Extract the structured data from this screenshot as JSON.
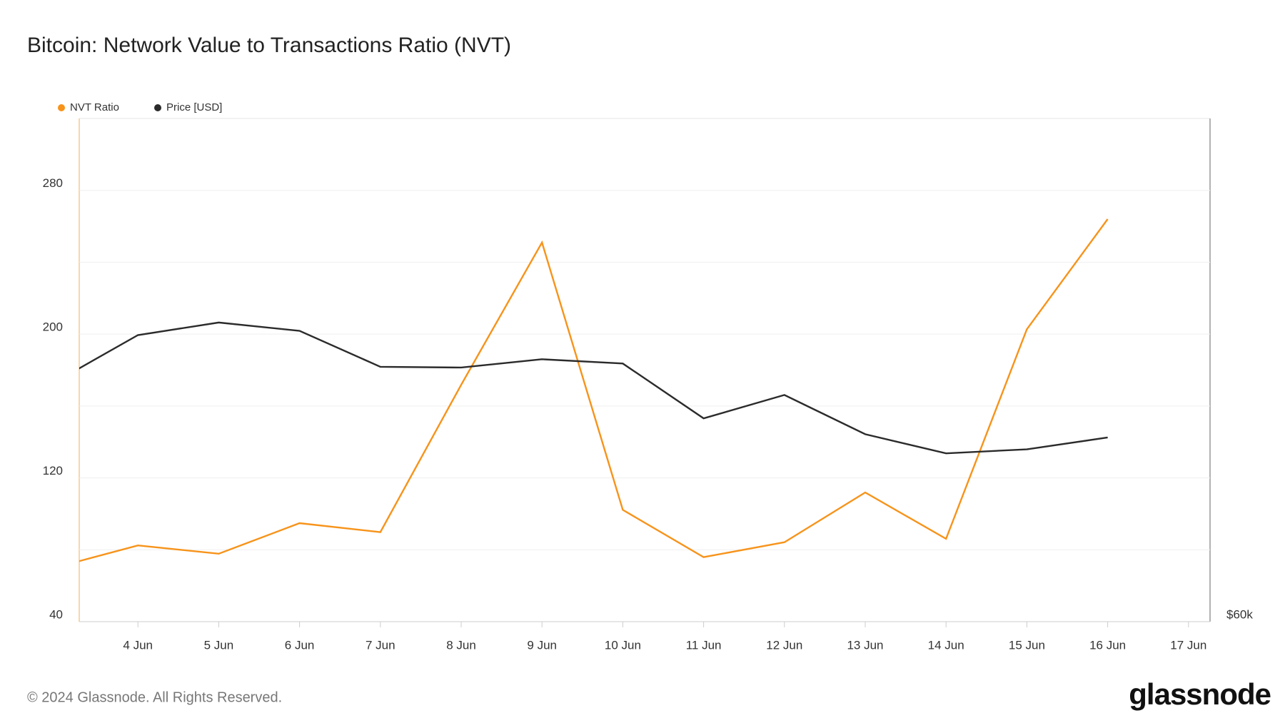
{
  "chart_data": {
    "type": "line",
    "title": "Bitcoin: Network Value to Transactions Ratio (NVT)",
    "categories": [
      null,
      "4 Jun",
      "5 Jun",
      "6 Jun",
      "7 Jun",
      "8 Jun",
      "9 Jun",
      "10 Jun",
      "11 Jun",
      "12 Jun",
      "13 Jun",
      "14 Jun",
      "15 Jun",
      "16 Jun",
      "17 Jun"
    ],
    "series": [
      {
        "name": "NVT Ratio",
        "color": "#f7931a",
        "values": [
          70.4,
          82.4,
          77.8,
          94.8,
          89.8,
          171.8,
          251,
          102.2,
          75.9,
          84.2,
          111.9,
          86.1,
          202.7,
          264,
          null
        ]
      },
      {
        "name": "Price [USD]",
        "color": "#2b2b2b",
        "axis": "y2",
        "values": [
          69570,
          71390,
          71890,
          71560,
          70130,
          70100,
          70430,
          70260,
          68080,
          69010,
          67450,
          66690,
          66850,
          67320,
          null
        ]
      }
    ],
    "ylim": [
      40,
      320
    ],
    "yticks": [
      40,
      120,
      200,
      280
    ],
    "ygrid": [
      80,
      120,
      160,
      200,
      240,
      280
    ],
    "y2lim": [
      60000,
      80000
    ],
    "y2ticks": [
      {
        "value": 60000,
        "label": "$60k"
      }
    ],
    "legend": "top-left"
  },
  "footer": "© 2024 Glassnode. All Rights Reserved.",
  "brand": "glassnode"
}
